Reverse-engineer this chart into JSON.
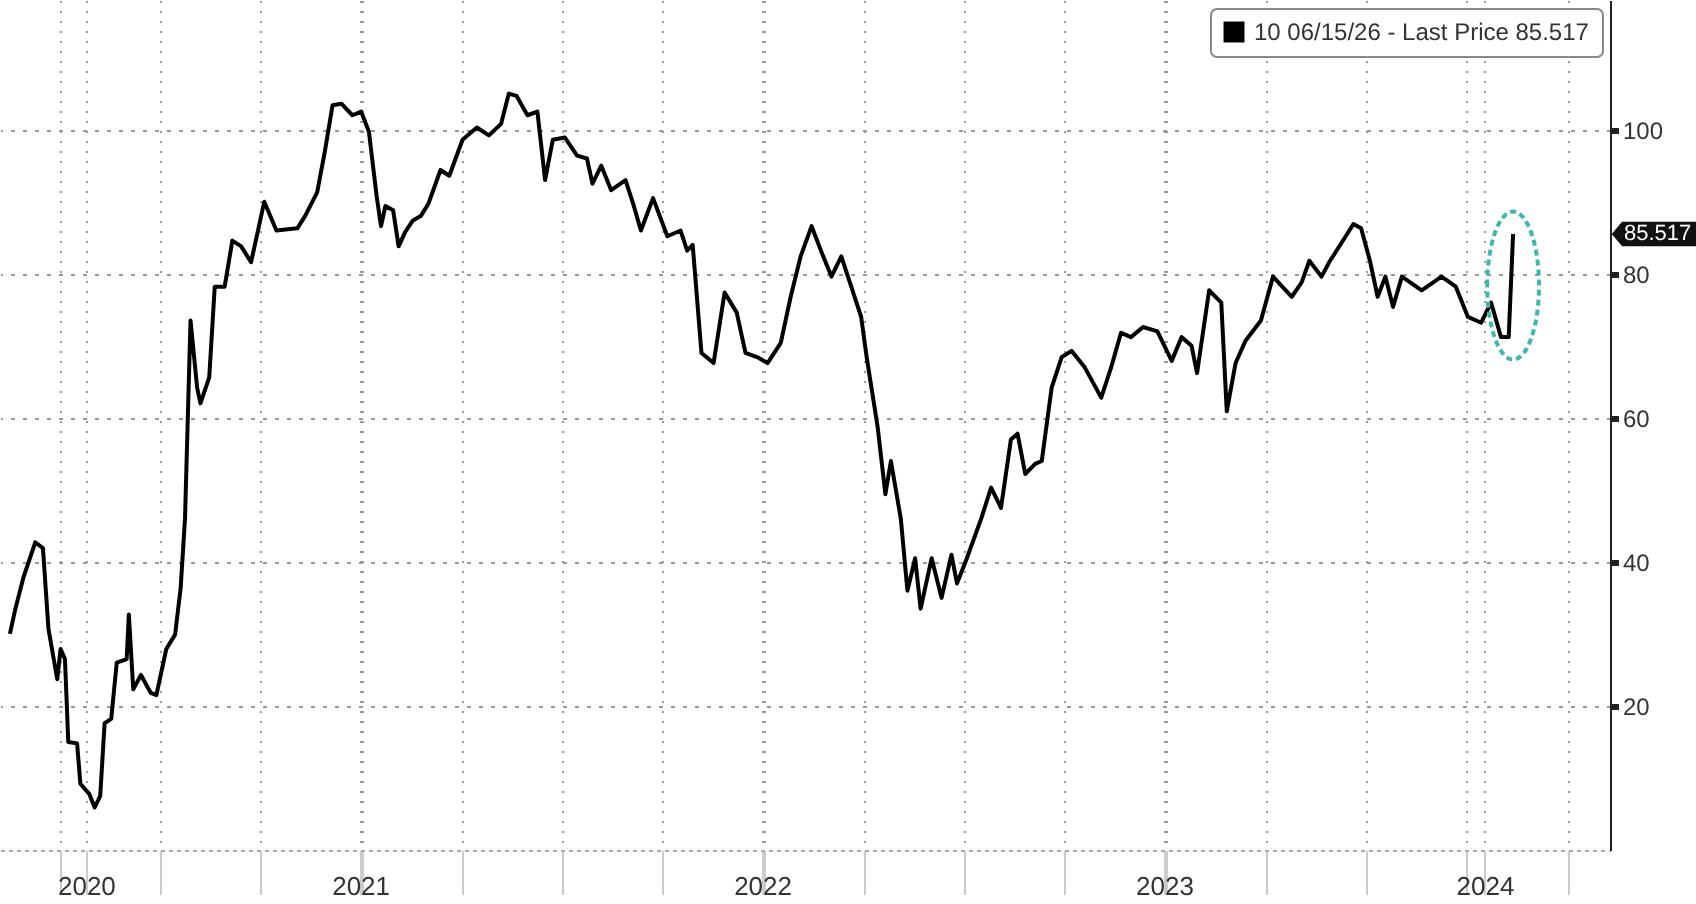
{
  "chart_data": {
    "type": "line",
    "x": [
      "2020-08-17",
      "2020-08-22",
      "2020-08-29",
      "2020-09-09",
      "2020-09-16",
      "2020-09-21",
      "2020-09-29",
      "2020-10-02",
      "2020-10-06",
      "2020-10-09",
      "2020-10-17",
      "2020-10-20",
      "2020-10-28",
      "2020-11-02",
      "2020-11-07",
      "2020-11-11",
      "2020-11-17",
      "2020-11-22",
      "2020-12-01",
      "2020-12-03",
      "2020-12-07",
      "2020-12-14",
      "2020-12-23",
      "2020-12-28",
      "2021-01-06",
      "2021-01-14",
      "2021-01-19",
      "2021-01-23",
      "2021-01-28",
      "2021-02-03",
      "2021-02-06",
      "2021-02-14",
      "2021-02-19",
      "2021-02-28",
      "2021-03-07",
      "2021-03-15",
      "2021-03-24",
      "2021-04-05",
      "2021-04-16",
      "2021-05-05",
      "2021-05-12",
      "2021-05-23",
      "2021-05-30",
      "2021-06-06",
      "2021-06-14",
      "2021-06-24",
      "2021-07-02",
      "2021-07-09",
      "2021-07-16",
      "2021-07-20",
      "2021-07-24",
      "2021-07-31",
      "2021-08-05",
      "2021-08-11",
      "2021-08-18",
      "2021-08-25",
      "2021-09-01",
      "2021-09-12",
      "2021-09-20",
      "2021-10-02",
      "2021-10-15",
      "2021-10-26",
      "2021-11-06",
      "2021-11-13",
      "2021-11-20",
      "2021-11-30",
      "2021-12-09",
      "2021-12-16",
      "2021-12-23",
      "2022-01-03",
      "2022-01-14",
      "2022-01-23",
      "2022-01-28",
      "2022-02-05",
      "2022-02-14",
      "2022-02-27",
      "2022-03-06",
      "2022-03-13",
      "2022-03-24",
      "2022-04-06",
      "2022-04-18",
      "2022-04-24",
      "2022-04-29",
      "2022-05-07",
      "2022-05-18",
      "2022-05-28",
      "2022-06-08",
      "2022-06-16",
      "2022-06-27",
      "2022-07-06",
      "2022-07-18",
      "2022-07-27",
      "2022-08-05",
      "2022-08-15",
      "2022-08-24",
      "2022-09-02",
      "2022-09-11",
      "2022-09-20",
      "2022-09-29",
      "2022-10-04",
      "2022-10-14",
      "2022-10-21",
      "2022-10-26",
      "2022-11-04",
      "2022-11-10",
      "2022-11-17",
      "2022-11-22",
      "2022-12-02",
      "2022-12-11",
      "2022-12-20",
      "2022-12-25",
      "2023-01-03",
      "2023-01-16",
      "2023-01-25",
      "2023-02-03",
      "2023-02-12",
      "2023-02-18",
      "2023-02-25",
      "2023-03-06",
      "2023-03-12",
      "2023-03-21",
      "2023-03-30",
      "2023-04-08",
      "2023-04-20",
      "2023-05-05",
      "2023-05-14",
      "2023-05-23",
      "2023-06-01",
      "2023-06-12",
      "2023-06-25",
      "2023-07-08",
      "2023-07-17",
      "2023-07-26",
      "2023-07-31",
      "2023-08-11",
      "2023-08-22",
      "2023-08-27",
      "2023-09-04",
      "2023-09-13",
      "2023-09-27",
      "2023-10-08",
      "2023-10-25",
      "2023-11-03",
      "2023-11-10",
      "2023-11-21",
      "2023-11-28",
      "2023-12-13",
      "2023-12-20",
      "2023-12-27",
      "2024-01-04",
      "2024-01-11",
      "2024-01-18",
      "2024-01-25",
      "2024-02-02",
      "2024-02-20",
      "2024-03-09",
      "2024-03-22",
      "2024-04-02",
      "2024-04-14",
      "2024-04-23",
      "2024-05-02",
      "2024-05-09",
      "2024-05-13"
    ],
    "series": [
      {
        "name": "10 06/15/26 - Last Price 85.517",
        "color": "#000000",
        "values": [
          30,
          33.5,
          37.7,
          42.7,
          41.9,
          30.7,
          23.7,
          27.9,
          26.5,
          15,
          14.8,
          9.2,
          7.8,
          5.9,
          7.5,
          17.6,
          18.2,
          26,
          26.5,
          32.7,
          22.3,
          24.3,
          21.8,
          21.5,
          27.9,
          29.9,
          36.3,
          46,
          73.5,
          64.2,
          62,
          65.6,
          78.2,
          78.2,
          84.6,
          83.8,
          81.6,
          90,
          86,
          86.3,
          88,
          91.3,
          97,
          103.4,
          103.6,
          102,
          102.5,
          99.7,
          90.8,
          86.6,
          89.4,
          88.8,
          83.8,
          85.8,
          87.4,
          88,
          89.7,
          94.4,
          93.6,
          98.6,
          100.3,
          99.2,
          100.8,
          105,
          104.7,
          102,
          102.5,
          93,
          98.6,
          98.9,
          96.4,
          96,
          92.5,
          95,
          91.6,
          93,
          89.7,
          86,
          90.5,
          85.2,
          86,
          83.2,
          84,
          69,
          67.6,
          77.4,
          74.6,
          69,
          68.4,
          67.6,
          70.4,
          76.8,
          82.4,
          86.6,
          83,
          79.6,
          82.4,
          78.2,
          74,
          68.4,
          58.7,
          49.4,
          54,
          46,
          36,
          40.5,
          33.5,
          40.5,
          35,
          41,
          37,
          40.5,
          46,
          50.3,
          47.5,
          57,
          57.8,
          52.2,
          53.6,
          54,
          64.2,
          68.4,
          69.3,
          67,
          62.8,
          67,
          71.8,
          71.2,
          72.6,
          72,
          67.9,
          71.2,
          70,
          66.2,
          77.7,
          76,
          60.9,
          67.6,
          70.7,
          73.5,
          79.6,
          76.8,
          78.8,
          81.8,
          79.6,
          81.6,
          85.2,
          86.9,
          86.3,
          81.8,
          76.8,
          79.6,
          75.4,
          79.6,
          77.7,
          79.6,
          78.2,
          74,
          73.2,
          76,
          71.2,
          71.2,
          85.517
        ]
      }
    ],
    "xlim": [
      "2020-08-08",
      "2024-08-09"
    ],
    "xticks": [
      {
        "value": "2020-10-01",
        "label": null
      },
      {
        "value": "2020-10-25",
        "label": "2020"
      },
      {
        "value": "2021-01-01",
        "label": null
      },
      {
        "value": "2021-04-01",
        "label": null
      },
      {
        "value": "2021-07-01",
        "label": "2021"
      },
      {
        "value": "2021-07-02",
        "label": null
      },
      {
        "value": "2021-10-01",
        "label": null
      },
      {
        "value": "2022-01-01",
        "label": null
      },
      {
        "value": "2022-04-01",
        "label": null
      },
      {
        "value": "2022-07-01",
        "label": "2022"
      },
      {
        "value": "2022-07-02",
        "label": null
      },
      {
        "value": "2022-10-01",
        "label": null
      },
      {
        "value": "2023-01-01",
        "label": null
      },
      {
        "value": "2023-04-01",
        "label": null
      },
      {
        "value": "2023-07-01",
        "label": "2023"
      },
      {
        "value": "2023-07-02",
        "label": null
      },
      {
        "value": "2023-10-01",
        "label": null
      },
      {
        "value": "2024-01-01",
        "label": null
      },
      {
        "value": "2024-04-01",
        "label": null
      },
      {
        "value": "2024-04-17",
        "label": "2024"
      },
      {
        "value": "2024-07-01",
        "label": null
      }
    ],
    "ylim": [
      0,
      118
    ],
    "yticks": [
      20,
      40,
      60,
      80,
      100
    ],
    "grid": true,
    "legend": "top right",
    "annotations": [
      "85.517"
    ]
  }
}
